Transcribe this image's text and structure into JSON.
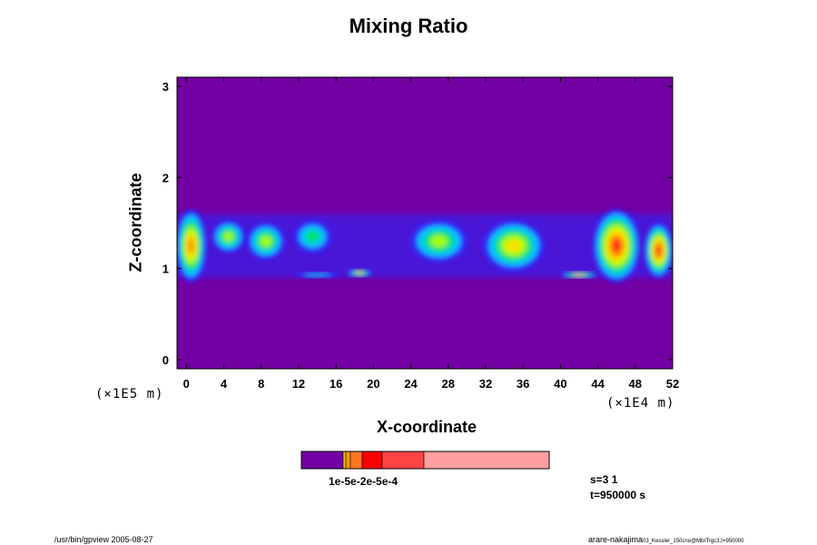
{
  "chart_data": {
    "type": "heatmap",
    "title": "Mixing Ratio",
    "xlabel": "X-coordinate",
    "ylabel": "Z-coordinate",
    "x_scale_label": "(×1E4 m)",
    "y_scale_label": "(×1E5 m)",
    "x_ticks": [
      "0",
      "4",
      "8",
      "12",
      "16",
      "20",
      "24",
      "28",
      "32",
      "36",
      "40",
      "44",
      "48",
      "52"
    ],
    "y_ticks": [
      "0",
      "1",
      "2",
      "3"
    ],
    "xlim": [
      -1,
      52
    ],
    "ylim": [
      -0.1,
      3.1
    ],
    "background_color": "#7300a3",
    "cloud_band": {
      "z_bottom": 0.9,
      "z_top": 1.6,
      "cells": [
        {
          "x": 0.5,
          "z": 1.25,
          "w": 3.2,
          "h": 0.8,
          "level": 5
        },
        {
          "x": 4.5,
          "z": 1.35,
          "w": 3.5,
          "h": 0.35,
          "level": 3
        },
        {
          "x": 8.5,
          "z": 1.3,
          "w": 4.0,
          "h": 0.4,
          "level": 3
        },
        {
          "x": 13.5,
          "z": 1.35,
          "w": 4.0,
          "h": 0.35,
          "level": 2
        },
        {
          "x": 14.0,
          "z": 0.93,
          "w": 5.0,
          "h": 0.06,
          "level": 1
        },
        {
          "x": 18.5,
          "z": 0.95,
          "w": 2.6,
          "h": 0.08,
          "level": 4
        },
        {
          "x": 27.0,
          "z": 1.3,
          "w": 6.0,
          "h": 0.45,
          "level": 3
        },
        {
          "x": 35.0,
          "z": 1.25,
          "w": 6.5,
          "h": 0.55,
          "level": 4
        },
        {
          "x": 42.0,
          "z": 0.93,
          "w": 4.0,
          "h": 0.07,
          "level": 4
        },
        {
          "x": 46.0,
          "z": 1.25,
          "w": 5.0,
          "h": 0.8,
          "level": 6
        },
        {
          "x": 50.5,
          "z": 1.2,
          "w": 3.0,
          "h": 0.6,
          "level": 6
        }
      ]
    },
    "colorbar": {
      "colors": [
        "#7300a3",
        "#f0c000",
        "#ff9900",
        "#ff7722",
        "#ff0000",
        "#ff4444",
        "#ffa0a0"
      ],
      "label": "1e-5e-2e-5e-4"
    },
    "info_lines": [
      "s=3 1",
      "t=950000 s"
    ],
    "footer_left": "/usr/bin/gpview 2005-08-27",
    "footer_right_main": "arare-nakajima",
    "footer_right_sub": "03_Kessler_150cno@MbrTrgc3,t=950000"
  }
}
